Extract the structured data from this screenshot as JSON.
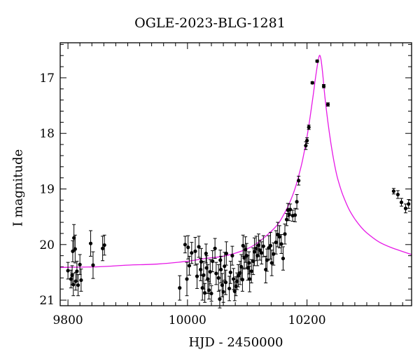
{
  "chart_data": {
    "type": "scatter",
    "title": "OGLE-2023-BLG-1281",
    "xlabel": "HJD - 2450000",
    "ylabel": "I magnitude",
    "xlim": [
      9787,
      10375
    ],
    "ylim": [
      21.1,
      16.37
    ],
    "y_inverted": true,
    "xticks": [
      9800,
      10000,
      10200
    ],
    "yticks": [
      17,
      18,
      19,
      20,
      21
    ],
    "grid": false,
    "legend": "none",
    "colors": {
      "points": "#000000",
      "model": "#e619e6"
    },
    "series": [
      {
        "kind": "points_with_errorbars",
        "x": [
          9800,
          9805,
          9807,
          9808,
          9809,
          9810,
          9812,
          9813,
          9815,
          9817,
          9820,
          9822,
          9838,
          9842,
          9858,
          9861,
          9987,
          9996,
          9999,
          10001,
          10003,
          10007,
          10013,
          10016,
          10019,
          10022,
          10023,
          10025,
          10027,
          10029,
          10031,
          10032,
          10034,
          10036,
          10038,
          10040,
          10042,
          10046,
          10048,
          10052,
          10054,
          10055,
          10056,
          10058,
          10060,
          10062,
          10064,
          10065,
          10070,
          10072,
          10075,
          10077,
          10079,
          10081,
          10083,
          10085,
          10088,
          10090,
          10092,
          10093,
          10095,
          10097,
          10099,
          10101,
          10103,
          10104,
          10107,
          10110,
          10112,
          10115,
          10117,
          10119,
          10121,
          10124,
          10127,
          10131,
          10133,
          10136,
          10139,
          10141,
          10144,
          10148,
          10151,
          10154,
          10157,
          10160,
          10163,
          10166,
          10168,
          10170,
          10172,
          10176,
          10180,
          10183,
          10186,
          10198,
          10200,
          10203,
          10209,
          10217,
          10228,
          10235,
          10345,
          10352,
          10358,
          10365,
          10370
        ],
        "y": [
          20.47,
          20.62,
          20.55,
          20.12,
          20.72,
          19.88,
          20.08,
          20.66,
          20.48,
          20.73,
          20.36,
          20.64,
          19.98,
          20.37,
          20.07,
          20.01,
          20.78,
          20.0,
          20.62,
          20.05,
          20.38,
          20.15,
          20.12,
          20.57,
          20.04,
          20.45,
          20.31,
          20.78,
          20.55,
          20.87,
          20.16,
          20.42,
          20.62,
          20.82,
          20.49,
          20.88,
          20.3,
          20.07,
          20.52,
          20.6,
          20.98,
          20.28,
          20.45,
          20.73,
          20.85,
          20.39,
          20.68,
          20.16,
          20.79,
          20.5,
          20.2,
          20.62,
          20.84,
          20.75,
          20.66,
          20.56,
          20.51,
          20.4,
          20.63,
          20.02,
          20.24,
          20.09,
          20.2,
          20.42,
          20.33,
          20.62,
          20.48,
          20.3,
          20.13,
          20.07,
          20.2,
          20.01,
          20.1,
          20.15,
          20.03,
          20.45,
          20.28,
          20.06,
          20.02,
          20.33,
          20.17,
          19.96,
          19.82,
          19.86,
          19.99,
          20.25,
          19.81,
          19.55,
          19.38,
          19.46,
          19.37,
          19.48,
          19.47,
          19.23,
          18.85,
          18.22,
          18.13,
          17.89,
          17.09,
          16.7,
          17.15,
          17.48,
          19.04,
          19.1,
          19.24,
          19.35,
          19.27
        ],
        "yerr": [
          0.15,
          0.16,
          0.17,
          0.19,
          0.2,
          0.24,
          0.25,
          0.16,
          0.18,
          0.19,
          0.18,
          0.2,
          0.23,
          0.24,
          0.22,
          0.18,
          0.22,
          0.15,
          0.3,
          0.21,
          0.17,
          0.19,
          0.25,
          0.22,
          0.19,
          0.2,
          0.24,
          0.22,
          0.25,
          0.17,
          0.17,
          0.22,
          0.26,
          0.16,
          0.22,
          0.14,
          0.19,
          0.18,
          0.2,
          0.24,
          0.16,
          0.18,
          0.24,
          0.21,
          0.19,
          0.25,
          0.22,
          0.21,
          0.22,
          0.2,
          0.17,
          0.19,
          0.17,
          0.17,
          0.15,
          0.2,
          0.21,
          0.22,
          0.21,
          0.19,
          0.2,
          0.23,
          0.22,
          0.22,
          0.2,
          0.23,
          0.21,
          0.24,
          0.25,
          0.22,
          0.18,
          0.2,
          0.18,
          0.2,
          0.19,
          0.24,
          0.2,
          0.22,
          0.24,
          0.23,
          0.2,
          0.21,
          0.22,
          0.2,
          0.17,
          0.21,
          0.18,
          0.11,
          0.12,
          0.11,
          0.1,
          0.1,
          0.12,
          0.13,
          0.08,
          0.07,
          0.05,
          0.04,
          0.02,
          0.02,
          0.03,
          0.03,
          0.05,
          0.07,
          0.07,
          0.08,
          0.08
        ]
      },
      {
        "kind": "model_curve",
        "x": [
          9787,
          9850,
          9900,
          9950,
          10000,
          10030,
          10060,
          10090,
          10110,
          10130,
          10150,
          10160,
          10170,
          10180,
          10190,
          10195,
          10200,
          10205,
          10210,
          10215,
          10220,
          10223,
          10226,
          10230,
          10235,
          10240,
          10245,
          10250,
          10255,
          10260,
          10270,
          10280,
          10290,
          10300,
          10320,
          10340,
          10375
        ],
        "y": [
          20.41,
          20.4,
          20.37,
          20.35,
          20.3,
          20.25,
          20.21,
          20.12,
          20.02,
          19.86,
          19.65,
          19.48,
          19.27,
          18.99,
          18.6,
          18.35,
          18.06,
          17.72,
          17.34,
          16.94,
          16.62,
          16.65,
          16.9,
          17.35,
          17.8,
          18.18,
          18.5,
          18.76,
          18.95,
          19.11,
          19.36,
          19.54,
          19.68,
          19.79,
          19.95,
          20.05,
          20.18
        ]
      }
    ]
  }
}
